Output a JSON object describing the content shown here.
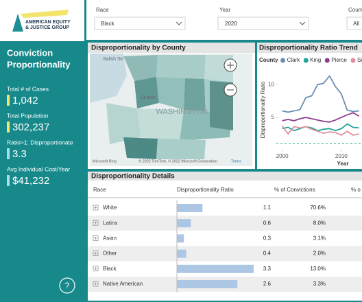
{
  "header": {
    "logo_lines": [
      "AMERICAN EQUITY",
      "& JUSTICE GROUP"
    ]
  },
  "filters": [
    {
      "label": "Race",
      "value": "Black"
    },
    {
      "label": "Year",
      "value": "2020"
    },
    {
      "label": "County",
      "value": "All"
    }
  ],
  "sidebar": {
    "title_lines": [
      "Conviction",
      "Proportionality"
    ],
    "kpis": [
      {
        "label": "Total # of Cases",
        "value": "1,042",
        "color": "#f3e46c"
      },
      {
        "label": "Total Population",
        "value": "302,237",
        "color": "#f3e46c"
      },
      {
        "label": "Ratio>1: Disproportionate",
        "value": "3.3",
        "color": "#a6e0e2"
      },
      {
        "label": "Avg Individual Cost/Year",
        "value": "$41,232",
        "color": "#a6e0e2"
      }
    ],
    "help": "?"
  },
  "map": {
    "title": "Disproportionality by County",
    "state_label": "WASHINGTON",
    "place_labels": [
      "Salish Se",
      "Seattle"
    ],
    "attribution": "© 2022 TomTom, © 2022 Microsoft Corporation",
    "terms": "Terms",
    "provider": "Microsoft Bing"
  },
  "trend": {
    "type": "line",
    "title": "Disproportionality Ratio Trend",
    "legend_title": "County",
    "y_label": "Disproportionality Ratio",
    "x_label": "Year",
    "x": [
      2000,
      2001,
      2002,
      2003,
      2004,
      2005,
      2006,
      2007,
      2008,
      2009,
      2010,
      2011,
      2012,
      2013
    ],
    "xlim": [
      1999,
      2013.5
    ],
    "xticks": [
      2000,
      2010
    ],
    "ylim": [
      0,
      12
    ],
    "yticks": [
      5,
      10
    ],
    "reference_line": 1,
    "series": [
      {
        "name": "Clark",
        "color": "#6a8fb3",
        "values": [
          6.0,
          5.8,
          6.0,
          6.2,
          8.0,
          8.3,
          10.0,
          10.2,
          11.3,
          9.7,
          8.6,
          6.1,
          5.9,
          6.0
        ]
      },
      {
        "name": "King",
        "color": "#1fa399",
        "values": [
          3.3,
          3.5,
          3.0,
          3.3,
          3.6,
          3.4,
          3.0,
          3.2,
          3.3,
          3.0,
          3.3,
          4.0,
          3.5,
          3.4
        ]
      },
      {
        "name": "Pierce",
        "color": "#8e3c8f",
        "values": [
          4.5,
          4.7,
          4.5,
          4.8,
          5.0,
          4.8,
          4.6,
          4.4,
          4.3,
          4.6,
          5.0,
          5.4,
          5.7,
          5.2
        ]
      },
      {
        "name": "Snohomish",
        "color": "#e0909c",
        "values": [
          3.7,
          2.5,
          3.6,
          3.4,
          3.6,
          3.2,
          2.9,
          2.6,
          2.8,
          2.7,
          2.3,
          2.9,
          2.3,
          2.5
        ]
      }
    ]
  },
  "table": {
    "title": "Disproportionality Details",
    "columns": [
      "Race",
      "Disproportionality Ratio",
      "% of Convictions",
      "% o"
    ],
    "bar_color": "#adc6e4",
    "rows": [
      {
        "race": "White",
        "ratio": 1.1,
        "convictions": "70.6%"
      },
      {
        "race": "Latinx",
        "ratio": 0.6,
        "convictions": "8.0%"
      },
      {
        "race": "Asian",
        "ratio": 0.3,
        "convictions": "3.1%"
      },
      {
        "race": "Other",
        "ratio": 0.4,
        "convictions": "2.0%"
      },
      {
        "race": "Black",
        "ratio": 3.3,
        "convictions": "13.0%"
      },
      {
        "race": "Native American",
        "ratio": 2.6,
        "convictions": "3.3%"
      }
    ]
  }
}
